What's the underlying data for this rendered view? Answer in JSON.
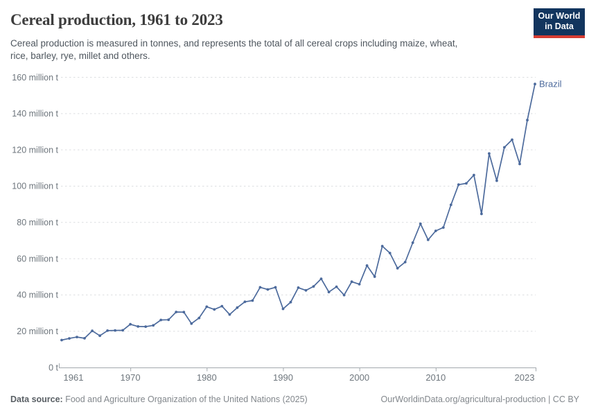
{
  "header": {
    "title": "Cereal production, 1961 to 2023",
    "subtitle_lines": [
      "Cereal production is measured in tonnes, and represents the total of all cereal crops including maize, wheat,",
      "rice, barley, rye, millet and others."
    ],
    "logo": {
      "line1": "Our World",
      "line2": "in Data",
      "bg_color": "#12355e",
      "accent_color": "#d63c32"
    }
  },
  "chart_data": {
    "type": "line",
    "title": "Cereal production, 1961 to 2023",
    "unit": "tonnes",
    "grid": true,
    "legend_position": "end-of-line",
    "xlim": [
      1961,
      2023
    ],
    "ylim": [
      0,
      160
    ],
    "xticks": [
      1961,
      1970,
      1980,
      1990,
      2000,
      2010,
      2023
    ],
    "yticks": [
      0,
      20,
      40,
      60,
      80,
      100,
      120,
      140,
      160
    ],
    "ytick_labels": [
      "0 t",
      "20 million t",
      "40 million t",
      "60 million t",
      "80 million t",
      "100 million t",
      "120 million t",
      "140 million t",
      "160 million t"
    ],
    "x": [
      1961,
      1962,
      1963,
      1964,
      1965,
      1966,
      1967,
      1968,
      1969,
      1970,
      1971,
      1972,
      1973,
      1974,
      1975,
      1976,
      1977,
      1978,
      1979,
      1980,
      1981,
      1982,
      1983,
      1984,
      1985,
      1986,
      1987,
      1988,
      1989,
      1990,
      1991,
      1992,
      1993,
      1994,
      1995,
      1996,
      1997,
      1998,
      1999,
      2000,
      2001,
      2002,
      2003,
      2004,
      2005,
      2006,
      2007,
      2008,
      2009,
      2010,
      2011,
      2012,
      2013,
      2014,
      2015,
      2016,
      2017,
      2018,
      2019,
      2020,
      2021,
      2022,
      2023
    ],
    "series": [
      {
        "name": "Brazil",
        "color": "#4C6A9C",
        "values": [
          15.1,
          16.0,
          16.8,
          16.1,
          20.2,
          17.5,
          20.3,
          20.4,
          20.5,
          23.8,
          22.6,
          22.5,
          23.2,
          26.2,
          26.3,
          30.6,
          30.5,
          24.2,
          27.3,
          33.5,
          32.0,
          33.8,
          29.2,
          33.0,
          36.2,
          36.9,
          44.2,
          43.0,
          44.2,
          32.3,
          36.0,
          44.0,
          42.5,
          44.7,
          48.9,
          41.6,
          44.5,
          39.9,
          47.3,
          45.9,
          56.2,
          50.1,
          66.9,
          63.1,
          54.7,
          58.1,
          68.8,
          79.2,
          70.4,
          75.3,
          77.2,
          89.7,
          100.8,
          101.5,
          106.1,
          84.7,
          118.0,
          103.0,
          121.4,
          125.6,
          112.2,
          136.4,
          156.3
        ]
      }
    ],
    "end_label": "Brazil",
    "colors": {
      "gridline": "#dcdee0",
      "axis": "#a3a9ae",
      "tick_label": "#6e767d"
    }
  },
  "footer": {
    "source_label": "Data source:",
    "source_text": " Food and Agriculture Organization of the United Nations (2025)",
    "credit": "OurWorldinData.org/agricultural-production | CC BY"
  }
}
